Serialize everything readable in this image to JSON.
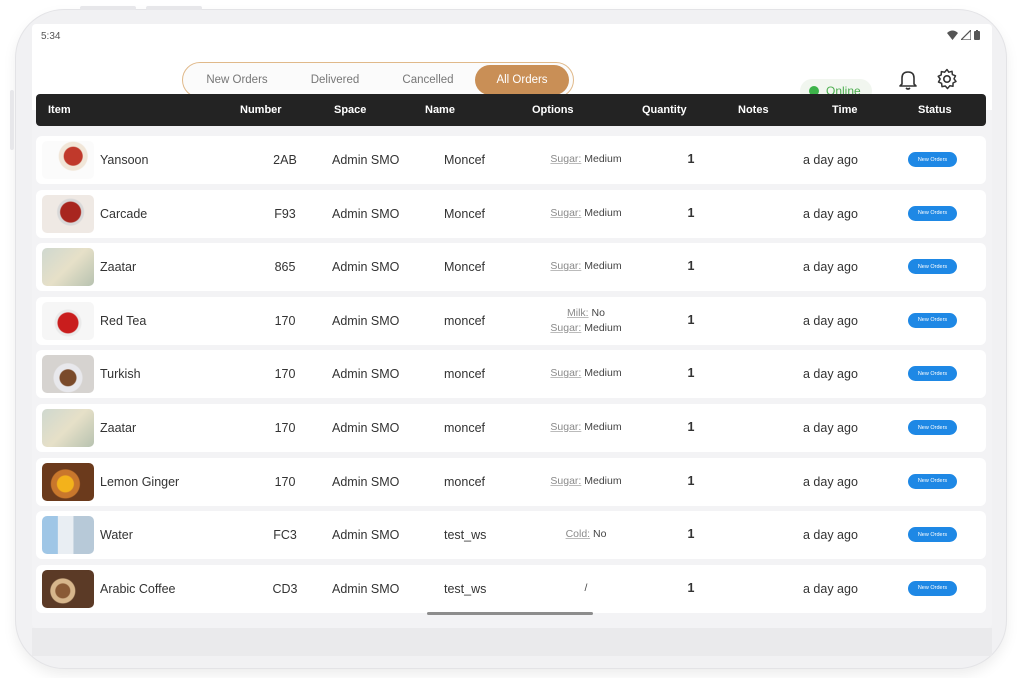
{
  "status_bar": {
    "time": "5:34"
  },
  "tabs": [
    {
      "label": "New Orders",
      "active": false
    },
    {
      "label": "Delivered",
      "active": false
    },
    {
      "label": "Cancelled",
      "active": false
    },
    {
      "label": "All Orders",
      "active": true
    }
  ],
  "online": {
    "label": "Online",
    "color": "#3db34a"
  },
  "icons": {
    "notifications": "bell-icon",
    "settings": "gear-icon"
  },
  "table": {
    "headers": [
      "Item",
      "Number",
      "Space",
      "Name",
      "Options",
      "Quantity",
      "Notes",
      "Time",
      "Status"
    ],
    "rows": [
      {
        "item": "Yansoon",
        "number": "2AB",
        "space": "Admin SMO",
        "name": "Moncef",
        "options": [
          [
            "Sugar:",
            "Medium"
          ]
        ],
        "quantity": "1",
        "notes": "",
        "time": "a day ago",
        "status": "New Orders"
      },
      {
        "item": "Carcade",
        "number": "F93",
        "space": "Admin SMO",
        "name": "Moncef",
        "options": [
          [
            "Sugar:",
            "Medium"
          ]
        ],
        "quantity": "1",
        "notes": "",
        "time": "a day ago",
        "status": "New Orders"
      },
      {
        "item": "Zaatar",
        "number": "865",
        "space": "Admin SMO",
        "name": "Moncef",
        "options": [
          [
            "Sugar:",
            "Medium"
          ]
        ],
        "quantity": "1",
        "notes": "",
        "time": "a day ago",
        "status": "New Orders"
      },
      {
        "item": "Red Tea",
        "number": "170",
        "space": "Admin SMO",
        "name": "moncef",
        "options": [
          [
            "Milk:",
            "No"
          ],
          [
            "Sugar:",
            "Medium"
          ]
        ],
        "quantity": "1",
        "notes": "",
        "time": "a day ago",
        "status": "New Orders"
      },
      {
        "item": "Turkish",
        "number": "170",
        "space": "Admin SMO",
        "name": "moncef",
        "options": [
          [
            "Sugar:",
            "Medium"
          ]
        ],
        "quantity": "1",
        "notes": "",
        "time": "a day ago",
        "status": "New Orders"
      },
      {
        "item": "Zaatar",
        "number": "170",
        "space": "Admin SMO",
        "name": "moncef",
        "options": [
          [
            "Sugar:",
            "Medium"
          ]
        ],
        "quantity": "1",
        "notes": "",
        "time": "a day ago",
        "status": "New Orders"
      },
      {
        "item": "Lemon Ginger",
        "number": "170",
        "space": "Admin SMO",
        "name": "moncef",
        "options": [
          [
            "Sugar:",
            "Medium"
          ]
        ],
        "quantity": "1",
        "notes": "",
        "time": "a day ago",
        "status": "New Orders"
      },
      {
        "item": "Water",
        "number": "FC3",
        "space": "Admin SMO",
        "name": "test_ws",
        "options": [
          [
            "Cold:",
            "No"
          ]
        ],
        "quantity": "1",
        "notes": "",
        "time": "a day ago",
        "status": "New Orders"
      },
      {
        "item": "Arabic Coffee",
        "number": "CD3",
        "space": "Admin SMO",
        "name": "test_ws",
        "options": [
          [
            "/",
            ""
          ]
        ],
        "quantity": "1",
        "notes": "",
        "time": "a day ago",
        "status": "New Orders"
      }
    ]
  },
  "colors": {
    "accent": "#c98f56",
    "header_bg": "#232323",
    "badge": "#1e88e5"
  }
}
